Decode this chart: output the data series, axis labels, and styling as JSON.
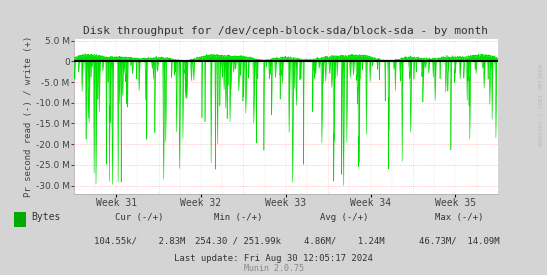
{
  "title": "Disk throughput for /dev/ceph-block-sda/block-sda - by month",
  "ylabel": "Pr second read (-) / write (+)",
  "ylim": [
    -32000000,
    5500000
  ],
  "yticks": [
    5000000,
    0.0,
    -5000000,
    -10000000,
    -15000000,
    -20000000,
    -25000000,
    -30000000
  ],
  "ytick_labels": [
    "5.0 M",
    "0.0",
    "-5.0 M",
    "-10.0 M",
    "-15.0 M",
    "-20.0 M",
    "-25.0 M",
    "-30.0 M"
  ],
  "xtick_labels": [
    "Week 31",
    "Week 32",
    "Week 33",
    "Week 34",
    "Week 35"
  ],
  "fig_bg_color": "#d4d4d4",
  "plot_bg_color": "#ffffff",
  "line_color": "#00e000",
  "zero_line_color": "#000000",
  "grid_h_color": "#ff9999",
  "grid_v_color": "#ffbbbb",
  "legend_label": "Bytes",
  "legend_color": "#00aa00",
  "cur_neg": "104.55k",
  "cur_pos": "2.83M",
  "min_neg": "254.30",
  "min_pos": "251.99k",
  "avg_neg": "4.86M",
  "avg_pos": "1.24M",
  "max_neg": "46.73M",
  "max_pos": "14.09M",
  "last_update": "Last update: Fri Aug 30 12:05:17 2024",
  "munin_version": "Munin 2.0.75",
  "rrdtool_label": "RRDTOOL / TOBI OETIKER",
  "n_points": 1800,
  "seed": 7
}
